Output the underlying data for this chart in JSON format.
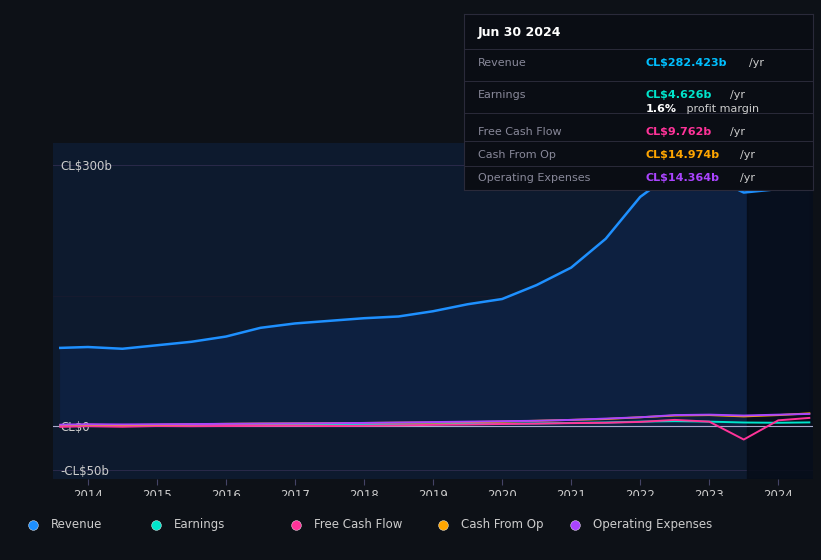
{
  "bg_color": "#0d1117",
  "plot_bg_color": "#0d1a2e",
  "tooltip_bg": "#0a0d14",
  "tooltip_border": "#2a2a3a",
  "date_label": "Jun 30 2024",
  "years": [
    2013.6,
    2014.0,
    2014.5,
    2015.0,
    2015.5,
    2016.0,
    2016.5,
    2017.0,
    2017.5,
    2018.0,
    2018.5,
    2019.0,
    2019.5,
    2020.0,
    2020.5,
    2021.0,
    2021.5,
    2022.0,
    2022.5,
    2023.0,
    2023.5,
    2024.0,
    2024.45
  ],
  "revenue": [
    90,
    91,
    89,
    93,
    97,
    103,
    113,
    118,
    121,
    124,
    126,
    132,
    140,
    146,
    162,
    182,
    215,
    263,
    292,
    287,
    268,
    272,
    282
  ],
  "earnings": [
    1.0,
    1.2,
    0.8,
    1.0,
    1.2,
    1.4,
    1.6,
    2.0,
    2.2,
    2.5,
    2.3,
    2.5,
    3.0,
    3.2,
    3.5,
    4.0,
    4.5,
    5.5,
    6.0,
    5.5,
    4.5,
    4.2,
    4.626
  ],
  "free_cash_flow": [
    -0.5,
    0.3,
    -0.3,
    0.5,
    0.3,
    0.5,
    0.7,
    0.8,
    0.5,
    0.8,
    1.2,
    1.8,
    2.2,
    2.8,
    3.2,
    3.8,
    4.2,
    5.2,
    7.5,
    5.5,
    -15.0,
    7.0,
    9.762
  ],
  "cash_from_op": [
    1.5,
    2.0,
    1.5,
    2.0,
    2.5,
    3.0,
    3.3,
    3.5,
    3.7,
    4.0,
    4.3,
    4.5,
    5.0,
    5.5,
    6.5,
    7.5,
    8.5,
    10.5,
    12.5,
    13.0,
    11.5,
    13.0,
    14.974
  ],
  "operating_expenses": [
    2.0,
    2.5,
    2.3,
    2.5,
    2.7,
    3.0,
    3.3,
    3.5,
    3.7,
    4.0,
    4.5,
    5.0,
    5.5,
    6.0,
    6.5,
    7.5,
    9.0,
    10.5,
    13.0,
    13.5,
    12.5,
    13.5,
    14.364
  ],
  "revenue_color": "#1e90ff",
  "revenue_fill": "#0d2040",
  "earnings_color": "#00e5cc",
  "free_cash_flow_color": "#ff3399",
  "cash_from_op_color": "#ffa500",
  "operating_expenses_color": "#aa44ff",
  "tooltip_revenue_color": "#00bfff",
  "tooltip_earnings_color": "#00e5cc",
  "tooltip_fcf_color": "#ff3399",
  "tooltip_cfo_color": "#ffa500",
  "tooltip_opex_color": "#aa44ff",
  "ytick_values": [
    300,
    0,
    -50
  ],
  "ytick_labels": [
    "CL$300b",
    "CL$0",
    "-CL$50b"
  ],
  "xtick_values": [
    2014,
    2015,
    2016,
    2017,
    2018,
    2019,
    2020,
    2021,
    2022,
    2023,
    2024
  ],
  "ymin": -60,
  "ymax": 325,
  "legend_labels": [
    "Revenue",
    "Earnings",
    "Free Cash Flow",
    "Cash From Op",
    "Operating Expenses"
  ],
  "legend_colors": [
    "#1e90ff",
    "#00e5cc",
    "#ff3399",
    "#ffa500",
    "#aa44ff"
  ]
}
